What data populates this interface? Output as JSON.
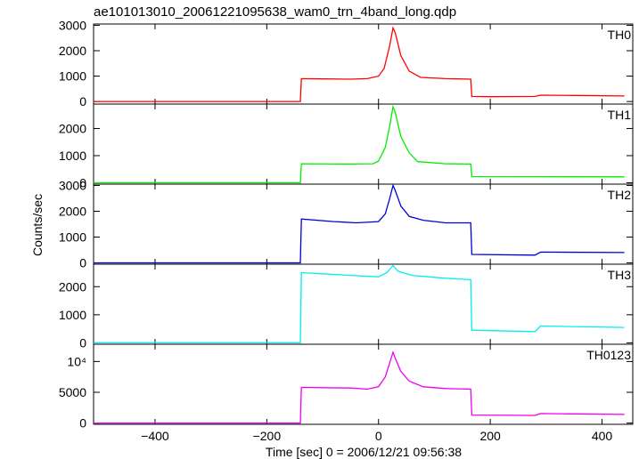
{
  "figure": {
    "title": "ae101013010_20061221095638_wam0_trn_4band_long.qdp",
    "xlabel": "Time [sec] 0 = 2006/12/21 09:56:38",
    "ylabel": "Counts/sec"
  },
  "chart_data": {
    "type": "line",
    "title": "ae101013010_20061221095638_wam0_trn_4band_long.qdp",
    "xlabel": "Time [sec] 0 = 2006/12/21 09:56:38",
    "ylabel": "Counts/sec",
    "xlim": [
      -510,
      455
    ],
    "x_ticks": [
      -400,
      -200,
      0,
      200,
      400
    ],
    "x_tick_labels": [
      "−400",
      "−200",
      "0",
      "200",
      "400"
    ],
    "legend": "none",
    "grid": false,
    "panels": [
      {
        "name": "TH0",
        "color": "#ff0000",
        "ylim": [
          -100,
          3050
        ],
        "y_ticks": [
          0,
          1000,
          2000,
          3000
        ],
        "y_tick_labels": [
          "0",
          "1000",
          "2000",
          "3000"
        ],
        "points": [
          [
            -510,
            0
          ],
          [
            -140,
            0
          ],
          [
            -138,
            900
          ],
          [
            -100,
            890
          ],
          [
            -50,
            880
          ],
          [
            -20,
            900
          ],
          [
            0,
            1000
          ],
          [
            10,
            1300
          ],
          [
            20,
            2200
          ],
          [
            26,
            2900
          ],
          [
            30,
            2700
          ],
          [
            40,
            1800
          ],
          [
            55,
            1200
          ],
          [
            75,
            950
          ],
          [
            120,
            900
          ],
          [
            165,
            880
          ],
          [
            167,
            200
          ],
          [
            200,
            190
          ],
          [
            280,
            200
          ],
          [
            290,
            250
          ],
          [
            350,
            240
          ],
          [
            440,
            220
          ]
        ]
      },
      {
        "name": "TH1",
        "color": "#00ee00",
        "ylim": [
          -50,
          2900
        ],
        "y_ticks": [
          0,
          1000,
          2000
        ],
        "y_tick_labels": [
          "0",
          "1000",
          "2000"
        ],
        "points": [
          [
            -510,
            0
          ],
          [
            -140,
            0
          ],
          [
            -138,
            700
          ],
          [
            -50,
            690
          ],
          [
            -10,
            700
          ],
          [
            0,
            800
          ],
          [
            12,
            1300
          ],
          [
            20,
            2100
          ],
          [
            26,
            2800
          ],
          [
            30,
            2600
          ],
          [
            40,
            1700
          ],
          [
            55,
            1100
          ],
          [
            70,
            780
          ],
          [
            120,
            700
          ],
          [
            165,
            690
          ],
          [
            167,
            230
          ],
          [
            280,
            225
          ],
          [
            440,
            220
          ]
        ]
      },
      {
        "name": "TH2",
        "color": "#0000dd",
        "ylim": [
          -50,
          3050
        ],
        "y_ticks": [
          0,
          1000,
          2000,
          3000
        ],
        "y_tick_labels": [
          "0",
          "1000",
          "2000",
          "3000"
        ],
        "points": [
          [
            -510,
            0
          ],
          [
            -140,
            0
          ],
          [
            -138,
            1700
          ],
          [
            -80,
            1600
          ],
          [
            -40,
            1550
          ],
          [
            0,
            1600
          ],
          [
            12,
            1900
          ],
          [
            20,
            2500
          ],
          [
            26,
            3000
          ],
          [
            30,
            2800
          ],
          [
            40,
            2200
          ],
          [
            55,
            1800
          ],
          [
            80,
            1650
          ],
          [
            120,
            1550
          ],
          [
            165,
            1550
          ],
          [
            167,
            330
          ],
          [
            280,
            300
          ],
          [
            290,
            420
          ],
          [
            440,
            400
          ]
        ]
      },
      {
        "name": "TH3",
        "color": "#00eeee",
        "ylim": [
          -50,
          2800
        ],
        "y_ticks": [
          0,
          1000,
          2000
        ],
        "y_tick_labels": [
          "0",
          "1000",
          "2000"
        ],
        "points": [
          [
            -510,
            0
          ],
          [
            -140,
            0
          ],
          [
            -138,
            2500
          ],
          [
            -50,
            2400
          ],
          [
            0,
            2350
          ],
          [
            15,
            2500
          ],
          [
            26,
            2750
          ],
          [
            35,
            2550
          ],
          [
            60,
            2400
          ],
          [
            120,
            2300
          ],
          [
            165,
            2250
          ],
          [
            167,
            450
          ],
          [
            280,
            400
          ],
          [
            290,
            600
          ],
          [
            440,
            550
          ]
        ]
      },
      {
        "name": "TH0123",
        "color": "#ee00ee",
        "ylim": [
          -200,
          12800
        ],
        "y_ticks": [
          0,
          5000,
          10000
        ],
        "y_tick_labels": [
          "0",
          "5000",
          "10⁴"
        ],
        "points": [
          [
            -510,
            0
          ],
          [
            -140,
            0
          ],
          [
            -138,
            5800
          ],
          [
            -50,
            5700
          ],
          [
            -20,
            5500
          ],
          [
            0,
            5900
          ],
          [
            12,
            7500
          ],
          [
            20,
            9800
          ],
          [
            26,
            11500
          ],
          [
            30,
            10500
          ],
          [
            40,
            8400
          ],
          [
            55,
            6800
          ],
          [
            80,
            5900
          ],
          [
            120,
            5600
          ],
          [
            165,
            5500
          ],
          [
            167,
            1300
          ],
          [
            280,
            1250
          ],
          [
            290,
            1550
          ],
          [
            440,
            1400
          ]
        ]
      }
    ]
  }
}
